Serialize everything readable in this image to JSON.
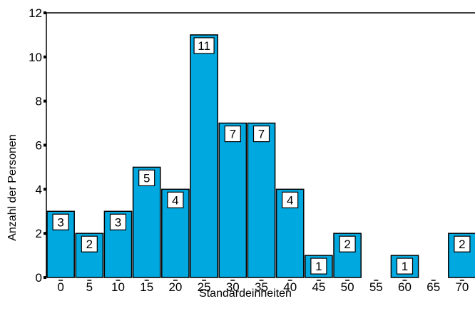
{
  "chart_data": {
    "type": "bar",
    "title": "",
    "xlabel": "Standardeinheiten",
    "ylabel": "Anzahl der Personen",
    "categories": [
      "0",
      "5",
      "10",
      "15",
      "20",
      "25",
      "30",
      "35",
      "40",
      "45",
      "50",
      "55",
      "60",
      "65",
      "70"
    ],
    "values": [
      3,
      2,
      3,
      5,
      4,
      11,
      7,
      7,
      4,
      1,
      2,
      0,
      1,
      0,
      2
    ],
    "ylim": [
      0,
      12
    ],
    "yticks": [
      0,
      2,
      4,
      6,
      8,
      10,
      12
    ],
    "grid": false,
    "bar_color": "#00a8e0",
    "data_labels": true
  }
}
